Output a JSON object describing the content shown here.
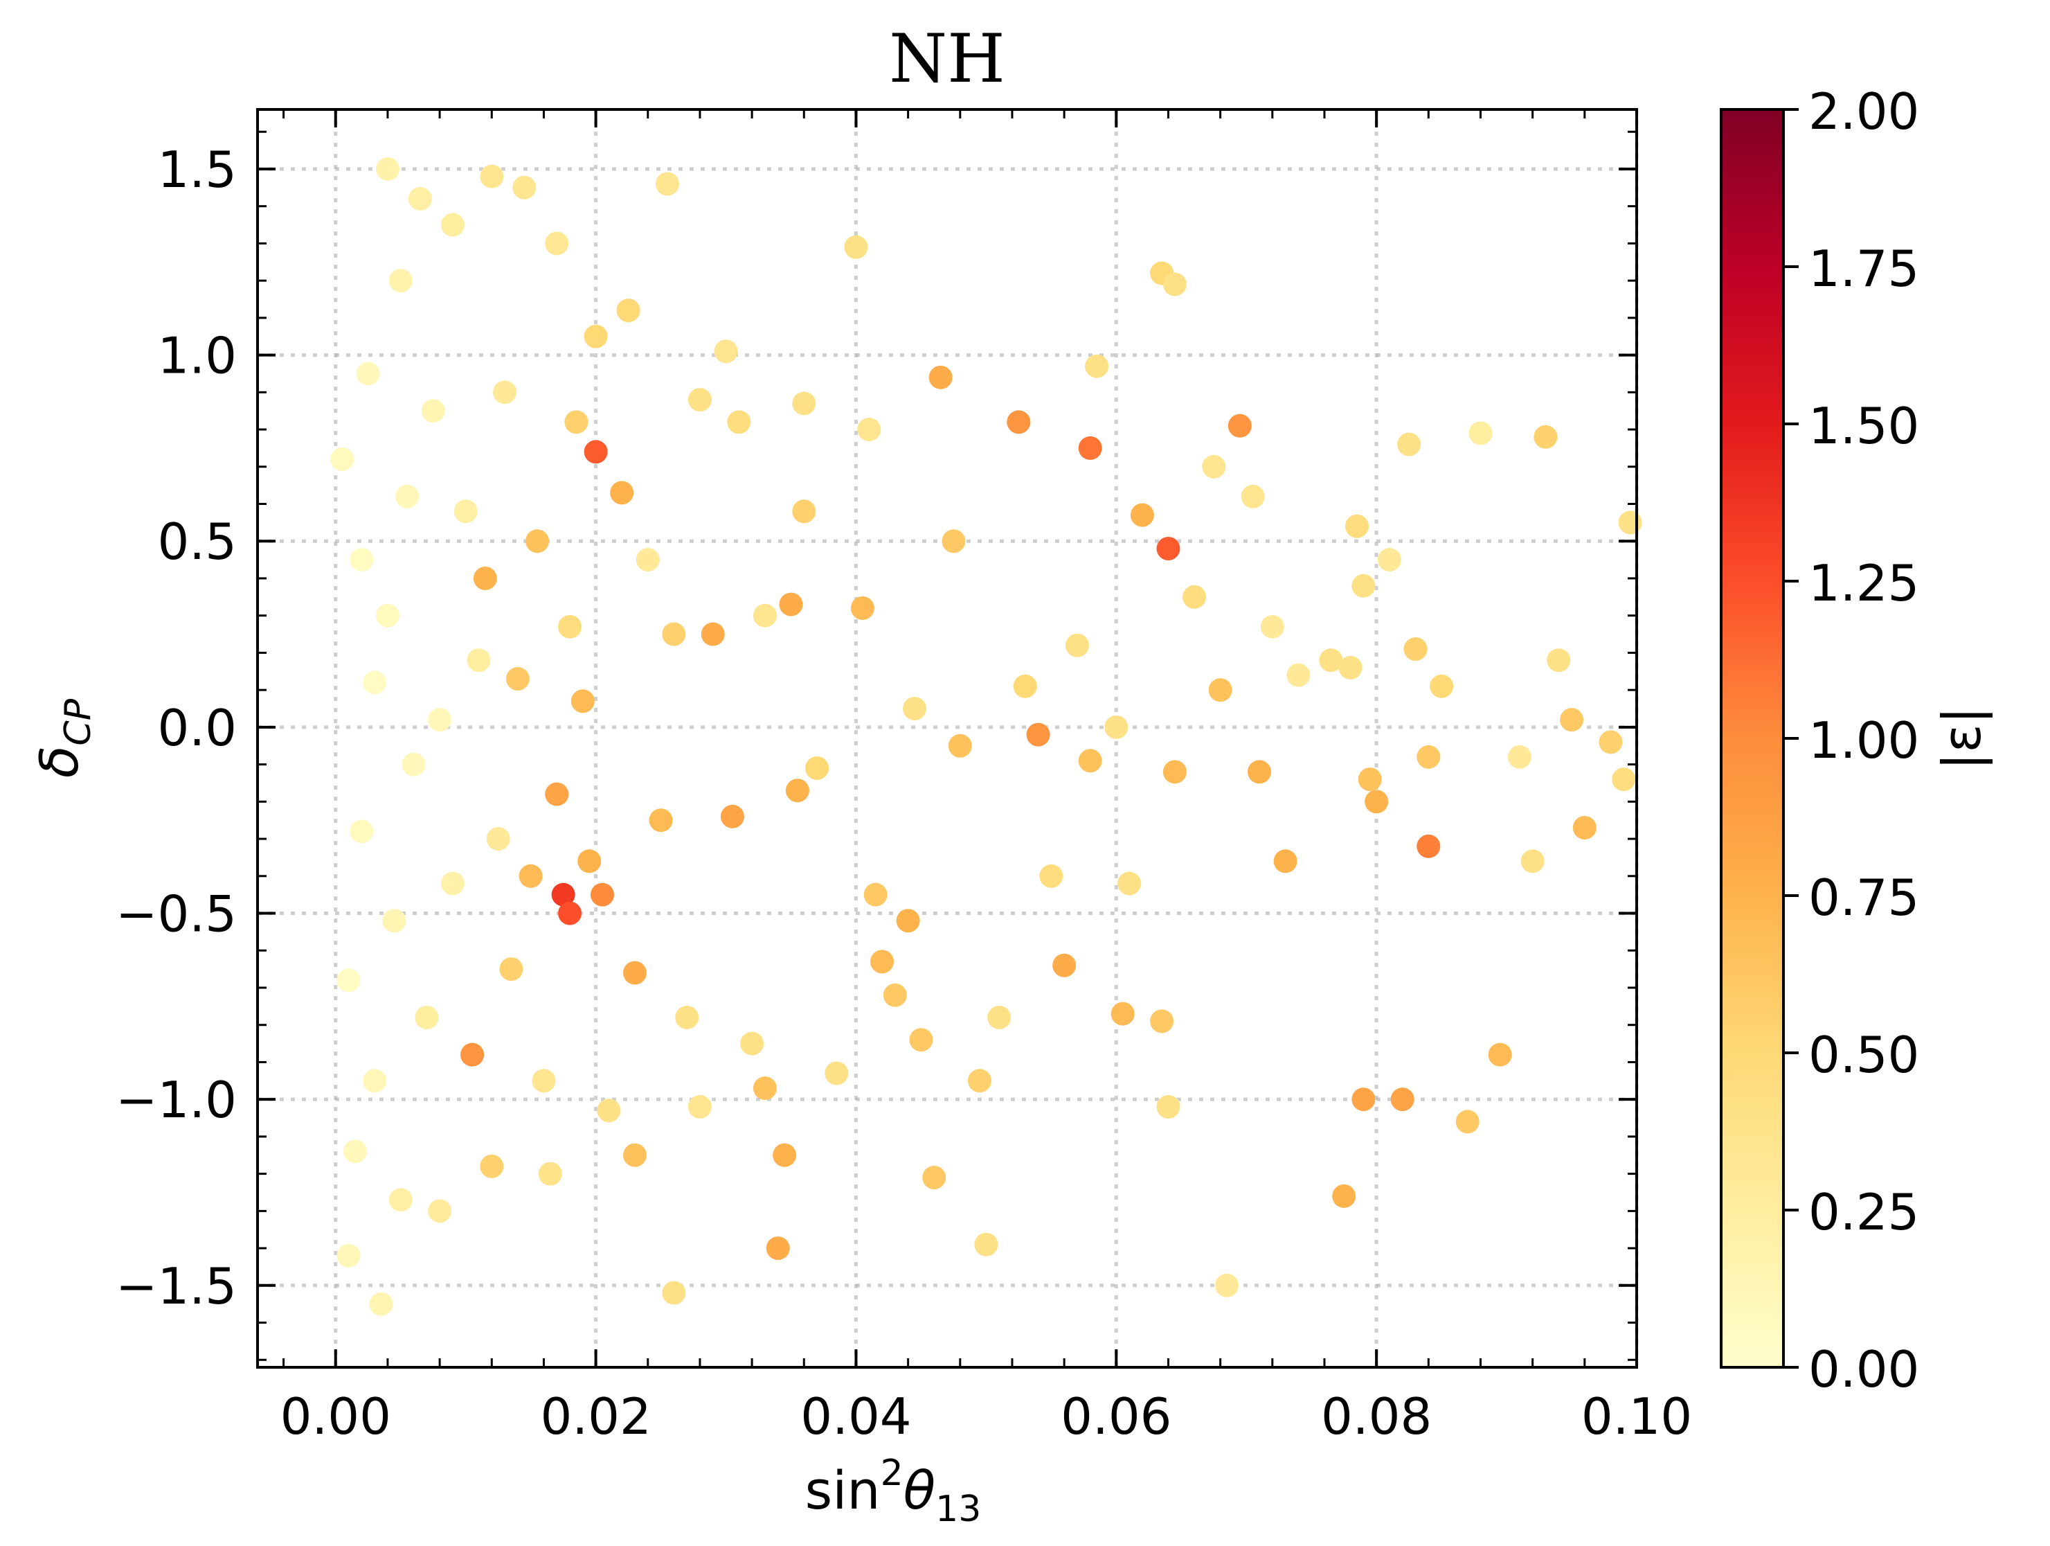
{
  "chart_data": {
    "type": "scatter",
    "title": "NH",
    "xlabel": {
      "base": "sin",
      "sup": "2",
      "sym": "θ",
      "sub": "13"
    },
    "ylabel": {
      "sym": "δ",
      "sub": "CP"
    },
    "xlim": [
      -0.006,
      0.1
    ],
    "ylim": [
      -1.72,
      1.66
    ],
    "xticks": [
      0.0,
      0.02,
      0.04,
      0.06,
      0.08,
      0.1
    ],
    "xtick_labels": [
      "0.00",
      "0.02",
      "0.04",
      "0.06",
      "0.08",
      "0.10"
    ],
    "yticks": [
      -1.5,
      -1.0,
      -0.5,
      0.0,
      0.5,
      1.0,
      1.5
    ],
    "ytick_labels": [
      "−1.5",
      "−1.0",
      "−0.5",
      "0.0",
      "0.5",
      "1.0",
      "1.5"
    ],
    "grid": true,
    "colorbar": {
      "label": "|ε|",
      "range": [
        0,
        2
      ],
      "ticks": [
        0.0,
        0.25,
        0.5,
        0.75,
        1.0,
        1.25,
        1.5,
        1.75,
        2.0
      ],
      "tick_labels": [
        "0.00",
        "0.25",
        "0.50",
        "0.75",
        "1.00",
        "1.25",
        "1.50",
        "1.75",
        "2.00"
      ],
      "colormap": [
        "#ffffcc",
        "#ffeda0",
        "#fed976",
        "#feb24c",
        "#fd8d3c",
        "#fc4e2a",
        "#e31a1c",
        "#bd0026",
        "#800026"
      ]
    },
    "series": [
      {
        "points": [
          [
            0.0005,
            0.72,
            0.08
          ],
          [
            0.001,
            -0.68,
            0.05
          ],
          [
            0.0015,
            -1.14,
            0.1
          ],
          [
            0.001,
            -1.42,
            0.12
          ],
          [
            0.002,
            0.45,
            0.06
          ],
          [
            0.002,
            -0.28,
            0.08
          ],
          [
            0.0025,
            0.95,
            0.1
          ],
          [
            0.003,
            0.12,
            0.05
          ],
          [
            0.003,
            -0.95,
            0.12
          ],
          [
            0.0035,
            -1.55,
            0.15
          ],
          [
            0.004,
            1.5,
            0.2
          ],
          [
            0.004,
            0.3,
            0.08
          ],
          [
            0.0045,
            -0.52,
            0.15
          ],
          [
            0.005,
            1.2,
            0.18
          ],
          [
            0.005,
            -1.27,
            0.22
          ],
          [
            0.0055,
            0.62,
            0.12
          ],
          [
            0.006,
            -0.1,
            0.1
          ],
          [
            0.0065,
            1.42,
            0.22
          ],
          [
            0.007,
            -0.78,
            0.25
          ],
          [
            0.0075,
            0.85,
            0.15
          ],
          [
            0.008,
            0.02,
            0.12
          ],
          [
            0.008,
            -1.3,
            0.28
          ],
          [
            0.009,
            1.35,
            0.25
          ],
          [
            0.009,
            -0.42,
            0.2
          ],
          [
            0.01,
            0.58,
            0.22
          ],
          [
            0.0105,
            -0.88,
            0.95
          ],
          [
            0.011,
            0.18,
            0.25
          ],
          [
            0.0115,
            0.4,
            0.75
          ],
          [
            0.012,
            1.48,
            0.35
          ],
          [
            0.012,
            -1.18,
            0.55
          ],
          [
            0.0125,
            -0.3,
            0.3
          ],
          [
            0.013,
            0.9,
            0.3
          ],
          [
            0.0135,
            -0.65,
            0.55
          ],
          [
            0.014,
            0.13,
            0.6
          ],
          [
            0.0145,
            1.45,
            0.35
          ],
          [
            0.015,
            -0.4,
            0.7
          ],
          [
            0.0155,
            0.5,
            0.65
          ],
          [
            0.016,
            -0.95,
            0.35
          ],
          [
            0.0165,
            -1.2,
            0.38
          ],
          [
            0.017,
            1.3,
            0.32
          ],
          [
            0.017,
            -0.18,
            0.85
          ],
          [
            0.0175,
            -0.45,
            1.35
          ],
          [
            0.018,
            0.27,
            0.45
          ],
          [
            0.018,
            -0.5,
            1.25
          ],
          [
            0.0185,
            0.82,
            0.55
          ],
          [
            0.019,
            0.07,
            0.7
          ],
          [
            0.0195,
            -0.36,
            0.75
          ],
          [
            0.02,
            0.74,
            1.2
          ],
          [
            0.02,
            1.05,
            0.5
          ],
          [
            0.0205,
            -0.45,
            1.0
          ],
          [
            0.021,
            -1.03,
            0.4
          ],
          [
            0.022,
            0.63,
            0.75
          ],
          [
            0.0225,
            1.12,
            0.5
          ],
          [
            0.023,
            -0.66,
            0.8
          ],
          [
            0.023,
            -1.15,
            0.65
          ],
          [
            0.024,
            0.45,
            0.3
          ],
          [
            0.025,
            -0.25,
            0.7
          ],
          [
            0.0255,
            1.46,
            0.35
          ],
          [
            0.026,
            -1.52,
            0.4
          ],
          [
            0.026,
            0.25,
            0.55
          ],
          [
            0.027,
            -0.78,
            0.4
          ],
          [
            0.028,
            0.88,
            0.4
          ],
          [
            0.028,
            -1.02,
            0.35
          ],
          [
            0.029,
            0.25,
            0.8
          ],
          [
            0.03,
            1.01,
            0.35
          ],
          [
            0.0305,
            -0.24,
            0.85
          ],
          [
            0.031,
            0.82,
            0.45
          ],
          [
            0.032,
            -0.85,
            0.4
          ],
          [
            0.033,
            0.3,
            0.35
          ],
          [
            0.033,
            -0.97,
            0.65
          ],
          [
            0.034,
            -1.4,
            0.8
          ],
          [
            0.0345,
            -1.15,
            0.75
          ],
          [
            0.035,
            0.33,
            0.8
          ],
          [
            0.0355,
            -0.17,
            0.75
          ],
          [
            0.036,
            0.87,
            0.4
          ],
          [
            0.036,
            0.58,
            0.55
          ],
          [
            0.037,
            -0.11,
            0.5
          ],
          [
            0.0385,
            -0.93,
            0.4
          ],
          [
            0.04,
            1.29,
            0.4
          ],
          [
            0.0405,
            0.32,
            0.7
          ],
          [
            0.041,
            0.8,
            0.35
          ],
          [
            0.0415,
            -0.45,
            0.6
          ],
          [
            0.042,
            -0.63,
            0.7
          ],
          [
            0.043,
            -0.72,
            0.6
          ],
          [
            0.044,
            -0.52,
            0.75
          ],
          [
            0.0445,
            0.05,
            0.4
          ],
          [
            0.045,
            -0.84,
            0.6
          ],
          [
            0.046,
            -1.21,
            0.6
          ],
          [
            0.0465,
            0.94,
            0.8
          ],
          [
            0.0475,
            0.5,
            0.6
          ],
          [
            0.048,
            -0.05,
            0.65
          ],
          [
            0.0495,
            -0.95,
            0.55
          ],
          [
            0.05,
            -1.39,
            0.4
          ],
          [
            0.051,
            -0.78,
            0.4
          ],
          [
            0.0525,
            0.82,
            0.95
          ],
          [
            0.053,
            0.11,
            0.5
          ],
          [
            0.054,
            -0.02,
            0.95
          ],
          [
            0.055,
            -0.4,
            0.45
          ],
          [
            0.056,
            -0.64,
            0.8
          ],
          [
            0.057,
            0.22,
            0.4
          ],
          [
            0.058,
            0.75,
            1.1
          ],
          [
            0.058,
            -0.09,
            0.65
          ],
          [
            0.0585,
            0.97,
            0.4
          ],
          [
            0.06,
            0.0,
            0.4
          ],
          [
            0.0605,
            -0.77,
            0.7
          ],
          [
            0.061,
            -0.42,
            0.4
          ],
          [
            0.062,
            0.57,
            0.75
          ],
          [
            0.0635,
            1.22,
            0.5
          ],
          [
            0.0635,
            -0.79,
            0.6
          ],
          [
            0.064,
            0.48,
            1.2
          ],
          [
            0.0645,
            1.19,
            0.4
          ],
          [
            0.0645,
            -0.12,
            0.7
          ],
          [
            0.064,
            -1.02,
            0.4
          ],
          [
            0.066,
            0.35,
            0.45
          ],
          [
            0.0675,
            0.7,
            0.35
          ],
          [
            0.068,
            0.1,
            0.65
          ],
          [
            0.0685,
            -1.5,
            0.3
          ],
          [
            0.0695,
            0.81,
            0.95
          ],
          [
            0.0705,
            0.62,
            0.35
          ],
          [
            0.071,
            -0.12,
            0.75
          ],
          [
            0.072,
            0.27,
            0.3
          ],
          [
            0.073,
            -0.36,
            0.75
          ],
          [
            0.074,
            0.14,
            0.3
          ],
          [
            0.0765,
            0.18,
            0.4
          ],
          [
            0.0775,
            -1.26,
            0.75
          ],
          [
            0.078,
            0.16,
            0.4
          ],
          [
            0.0785,
            0.54,
            0.45
          ],
          [
            0.079,
            0.38,
            0.4
          ],
          [
            0.0795,
            -0.14,
            0.65
          ],
          [
            0.08,
            -0.2,
            0.75
          ],
          [
            0.081,
            0.45,
            0.3
          ],
          [
            0.079,
            -1.0,
            0.85
          ],
          [
            0.082,
            -1.0,
            0.85
          ],
          [
            0.0825,
            0.76,
            0.4
          ],
          [
            0.083,
            0.21,
            0.55
          ],
          [
            0.084,
            -0.32,
            1.05
          ],
          [
            0.084,
            -0.08,
            0.6
          ],
          [
            0.085,
            0.11,
            0.5
          ],
          [
            0.087,
            -1.06,
            0.6
          ],
          [
            0.088,
            0.79,
            0.25
          ],
          [
            0.0895,
            -0.88,
            0.7
          ],
          [
            0.091,
            -0.08,
            0.3
          ],
          [
            0.092,
            -0.36,
            0.4
          ],
          [
            0.093,
            0.78,
            0.55
          ],
          [
            0.094,
            0.18,
            0.4
          ],
          [
            0.095,
            0.02,
            0.6
          ],
          [
            0.096,
            -0.27,
            0.7
          ],
          [
            0.098,
            -0.04,
            0.55
          ],
          [
            0.099,
            -0.14,
            0.45
          ],
          [
            0.0995,
            0.55,
            0.4
          ]
        ]
      }
    ]
  }
}
